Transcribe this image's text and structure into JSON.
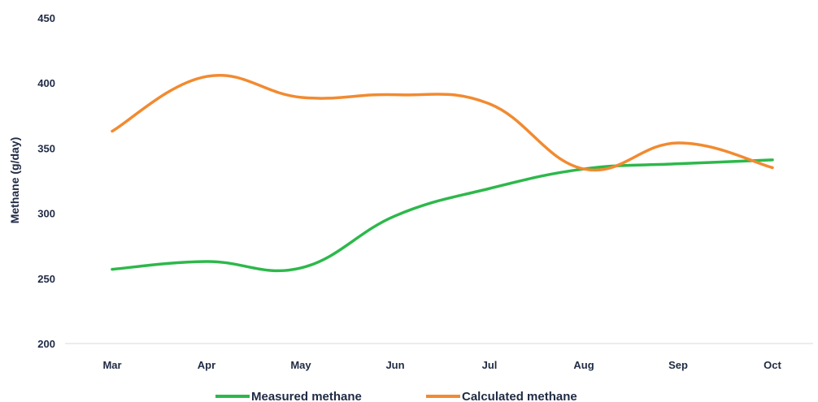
{
  "chart_data": {
    "type": "line",
    "title": "",
    "xlabel": "",
    "ylabel": "Methane (g/day)",
    "categories": [
      "Mar",
      "Apr",
      "May",
      "Jun",
      "Jul",
      "Aug",
      "Sep",
      "Oct"
    ],
    "ylim": [
      200,
      450
    ],
    "yticks": [
      "200",
      "250",
      "300",
      "350",
      "400",
      "450"
    ],
    "grid": false,
    "legend_position": "bottom",
    "series": [
      {
        "name": "Measured methane",
        "color": "#2db84b",
        "values": [
          257,
          263,
          258,
          298,
          319,
          334,
          338,
          341
        ]
      },
      {
        "name": "Calculated methane",
        "color": "#f28a30",
        "values": [
          363,
          405,
          389,
          391,
          384,
          334,
          354,
          335
        ]
      }
    ]
  }
}
